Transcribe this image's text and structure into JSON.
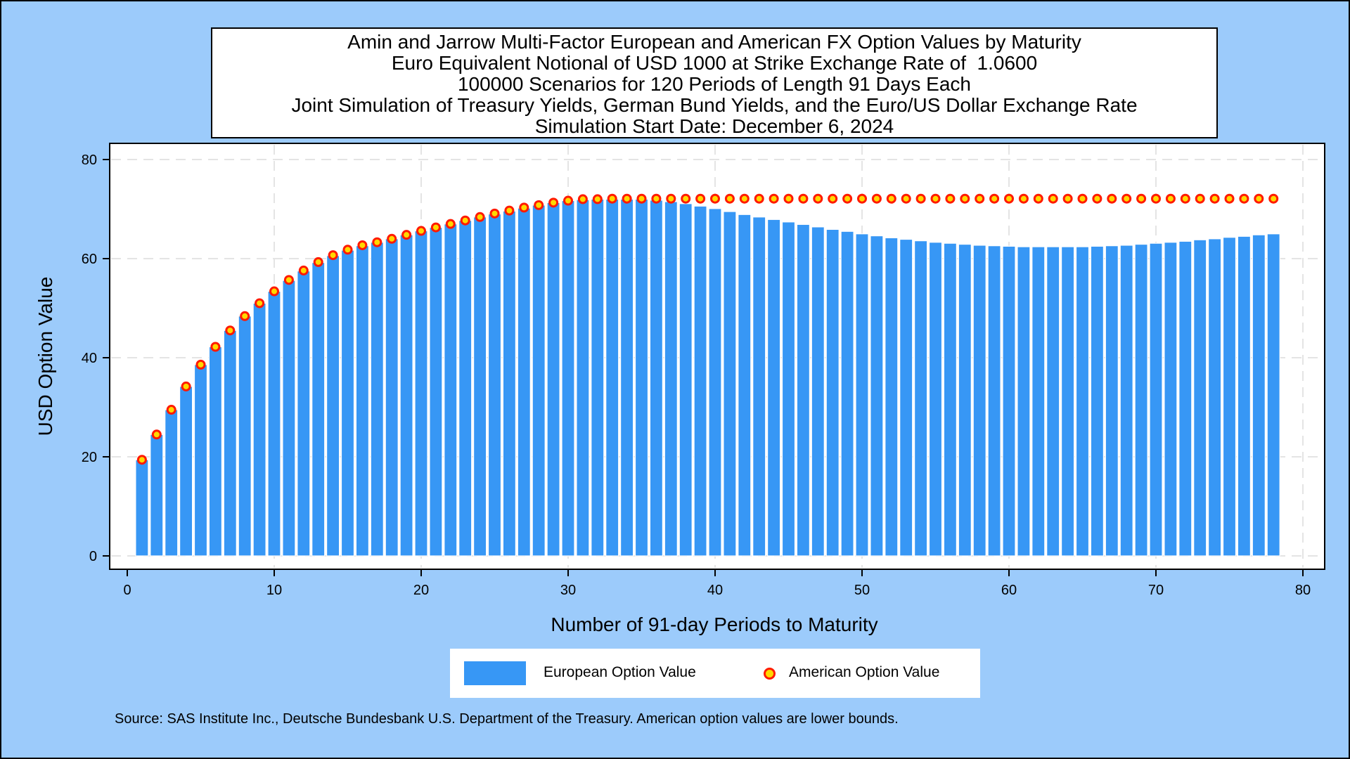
{
  "title_lines": [
    "Amin and Jarrow Multi-Factor European and American FX Option Values by Maturity",
    "Euro Equivalent Notional of USD 1000 at Strike Exchange Rate of  1.0600",
    "100000 Scenarios for 120 Periods of Length 91 Days Each",
    "Joint Simulation of Treasury Yields, German Bund Yields, and the Euro/US Dollar Exchange Rate",
    "Simulation Start Date: December 6, 2024"
  ],
  "source_note": "Source: SAS Institute Inc., Deutsche Bundesbank U.S. Department of the Treasury. American option values are lower bounds.",
  "legend": {
    "european_label": "European Option Value",
    "american_label": "American Option Value"
  },
  "colors": {
    "background": "#9ccbfb",
    "bar_fill": "#3797f5",
    "marker_fill": "#ffd800",
    "marker_edge": "#ff1a00"
  },
  "chart_data": {
    "type": "bar",
    "xlabel": "Number of 91-day Periods to Maturity",
    "ylabel": "USD Option Value",
    "xlim": [
      0,
      80
    ],
    "ylim": [
      0,
      80
    ],
    "x_ticks": [
      0,
      10,
      20,
      30,
      40,
      50,
      60,
      70,
      80
    ],
    "y_ticks": [
      0,
      20,
      40,
      60,
      80
    ],
    "grid": true,
    "legend_position": "bottom",
    "x": [
      1,
      2,
      3,
      4,
      5,
      6,
      7,
      8,
      9,
      10,
      11,
      12,
      13,
      14,
      15,
      16,
      17,
      18,
      19,
      20,
      21,
      22,
      23,
      24,
      25,
      26,
      27,
      28,
      29,
      30,
      31,
      32,
      33,
      34,
      35,
      36,
      37,
      38,
      39,
      40,
      41,
      42,
      43,
      44,
      45,
      46,
      47,
      48,
      49,
      50,
      51,
      52,
      53,
      54,
      55,
      56,
      57,
      58,
      59,
      60,
      61,
      62,
      63,
      64,
      65,
      66,
      67,
      68,
      69,
      70,
      71,
      72,
      73,
      74,
      75,
      76,
      77,
      78
    ],
    "series": [
      {
        "name": "European Option Value",
        "type": "bar",
        "values": [
          19.4,
          24.5,
          29.5,
          34.2,
          38.6,
          42.2,
          45.5,
          48.4,
          51.0,
          53.4,
          55.6,
          57.5,
          59.2,
          60.6,
          61.7,
          62.6,
          63.3,
          64.0,
          64.8,
          65.6,
          66.3,
          67.0,
          67.7,
          68.4,
          69.0,
          69.6,
          70.2,
          70.8,
          71.3,
          71.7,
          71.9,
          72.0,
          72.0,
          72.0,
          72.0,
          71.8,
          71.5,
          71.1,
          70.6,
          70.1,
          69.5,
          68.9,
          68.4,
          67.9,
          67.4,
          66.9,
          66.4,
          65.9,
          65.5,
          65.0,
          64.6,
          64.2,
          63.9,
          63.6,
          63.3,
          63.1,
          62.9,
          62.7,
          62.6,
          62.5,
          62.4,
          62.4,
          62.4,
          62.4,
          62.4,
          62.5,
          62.6,
          62.7,
          62.9,
          63.1,
          63.3,
          63.5,
          63.8,
          64.0,
          64.3,
          64.5,
          64.8,
          65.0
        ]
      },
      {
        "name": "American Option Value",
        "type": "scatter",
        "values": [
          19.4,
          24.5,
          29.5,
          34.2,
          38.6,
          42.2,
          45.5,
          48.4,
          51.0,
          53.4,
          55.7,
          57.6,
          59.3,
          60.7,
          61.8,
          62.7,
          63.3,
          64.0,
          64.8,
          65.6,
          66.3,
          67.0,
          67.7,
          68.4,
          69.1,
          69.7,
          70.3,
          70.8,
          71.3,
          71.7,
          72.0,
          72.0,
          72.1,
          72.1,
          72.1,
          72.1,
          72.1,
          72.1,
          72.1,
          72.1,
          72.1,
          72.1,
          72.1,
          72.1,
          72.1,
          72.1,
          72.1,
          72.1,
          72.1,
          72.1,
          72.1,
          72.1,
          72.1,
          72.1,
          72.1,
          72.1,
          72.1,
          72.1,
          72.1,
          72.1,
          72.1,
          72.1,
          72.1,
          72.1,
          72.1,
          72.1,
          72.1,
          72.1,
          72.1,
          72.1,
          72.1,
          72.1,
          72.1,
          72.1,
          72.1,
          72.1,
          72.1,
          72.1
        ]
      }
    ]
  }
}
